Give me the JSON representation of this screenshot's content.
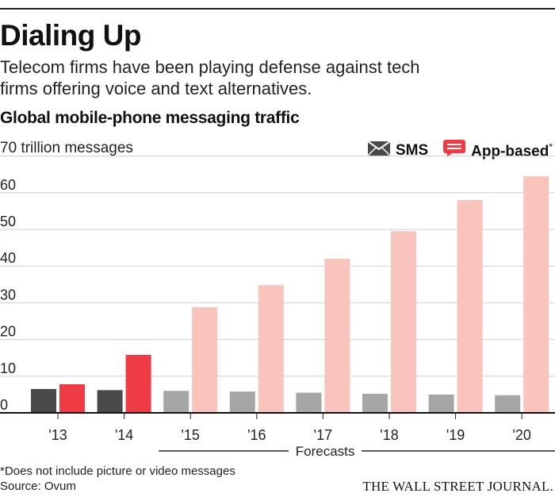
{
  "header": {
    "title": "Dialing Up",
    "subtitle": "Telecom firms have been playing defense against tech firms offering voice and text alternatives."
  },
  "chart_title": "Global mobile-phone messaging traffic",
  "unit_label": "70 trillion messages",
  "legend": {
    "sms_label": "SMS",
    "app_label": "App-based",
    "app_note": "*"
  },
  "chart_data": {
    "type": "bar",
    "title": "Global mobile-phone messaging traffic",
    "ylabel": "70 trillion messages",
    "ylim": [
      0,
      70
    ],
    "yticks": [
      0,
      10,
      20,
      30,
      40,
      50,
      60
    ],
    "grid": true,
    "legend_position": "top-right",
    "categories": [
      "'13",
      "'14",
      "'15",
      "'16",
      "'17",
      "'18",
      "'19",
      "'20"
    ],
    "series": [
      {
        "name": "SMS",
        "values": [
          6.5,
          6.2,
          6.0,
          5.8,
          5.5,
          5.2,
          5.0,
          4.8
        ]
      },
      {
        "name": "App-based",
        "values": [
          7.8,
          15.8,
          28.8,
          34.8,
          42.0,
          49.5,
          58.0,
          64.5
        ]
      }
    ],
    "forecast_label": "Forecasts",
    "forecast_from_index": 2,
    "colors": {
      "sms_actual": "#4a4a4a",
      "sms_forecast": "#a6a6a6",
      "app_actual": "#ee3b44",
      "app_forecast": "#f8c4bb",
      "grid": "#cfcfcf"
    }
  },
  "footer": {
    "footnote": "*Does not include picture or video messages",
    "source": "Source: Ovum",
    "publisher": "THE WALL STREET JOURNAL."
  }
}
